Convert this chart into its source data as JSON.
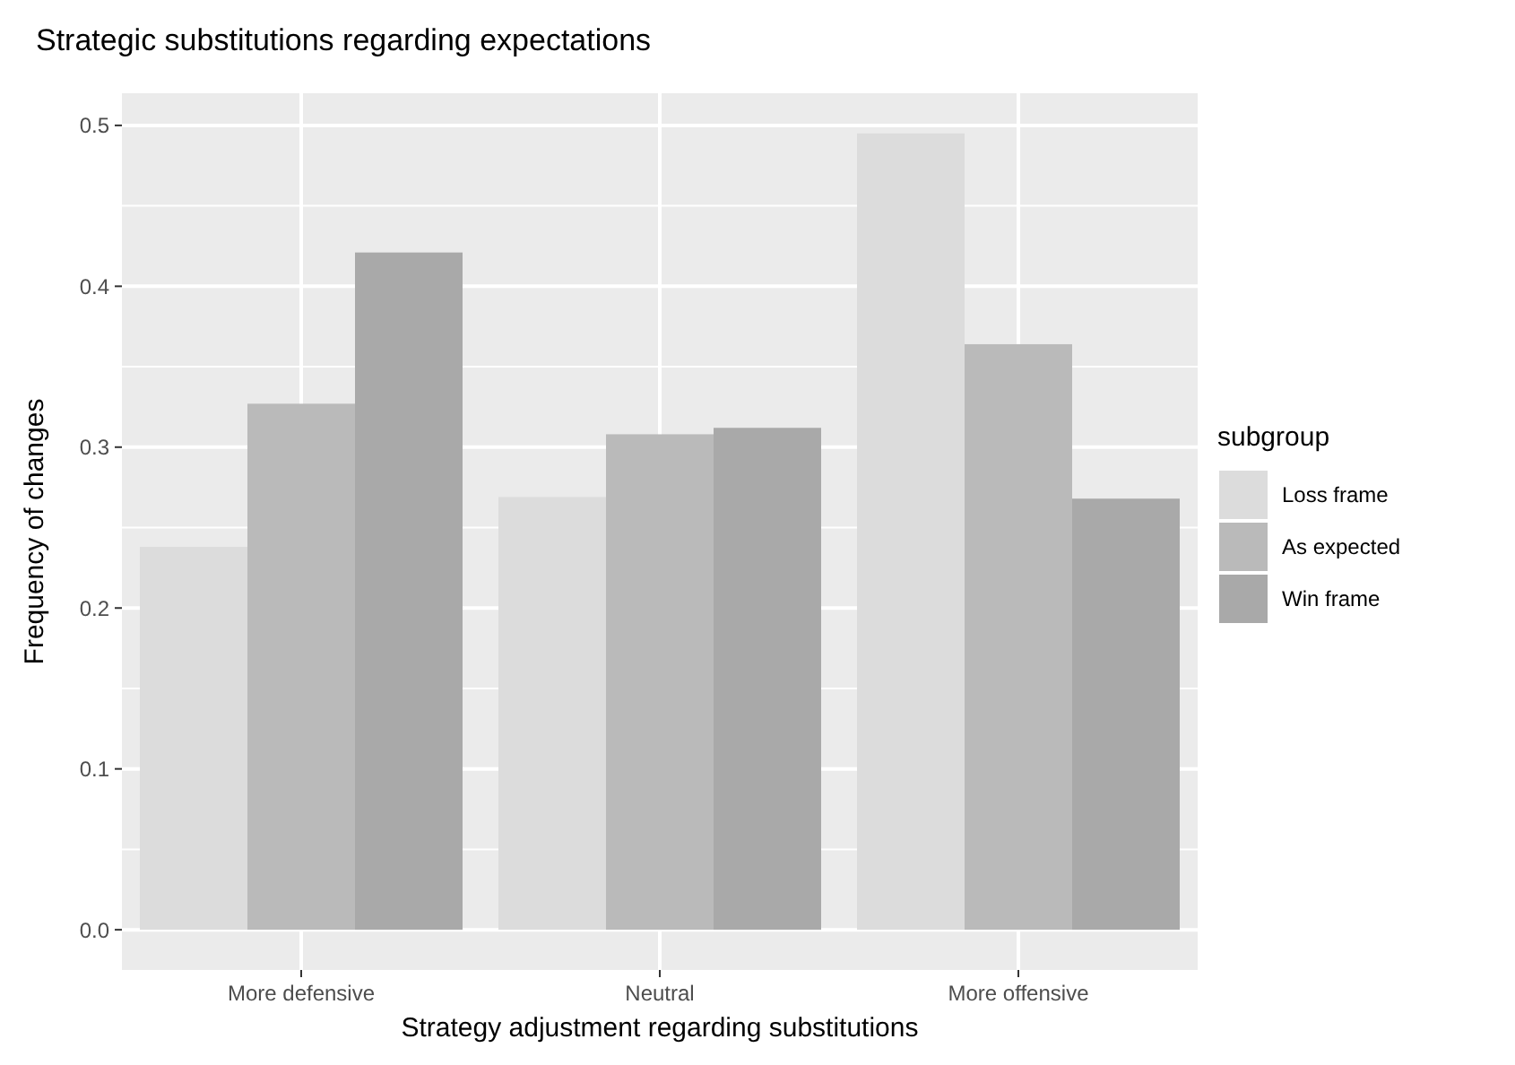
{
  "chart_data": {
    "type": "bar",
    "title": "Strategic substitutions regarding expectations",
    "xlabel": "Strategy adjustment regarding substitutions",
    "ylabel": "Frequency of changes",
    "legend_title": "subgroup",
    "categories": [
      "More defensive",
      "Neutral",
      "More offensive"
    ],
    "series": [
      {
        "name": "Loss frame",
        "color": "#dcdcdc",
        "values": [
          0.238,
          0.269,
          0.495
        ]
      },
      {
        "name": "As expected",
        "color": "#bababa",
        "values": [
          0.327,
          0.308,
          0.364
        ]
      },
      {
        "name": "Win frame",
        "color": "#a9a9a9",
        "values": [
          0.421,
          0.312,
          0.268
        ]
      }
    ],
    "ylim": [
      -0.025,
      0.52
    ],
    "yticks": [
      {
        "value": 0,
        "label": "0.0"
      },
      0.1,
      0.2,
      0.3,
      0.4,
      0.5
    ],
    "grid": true,
    "legend": "right"
  }
}
